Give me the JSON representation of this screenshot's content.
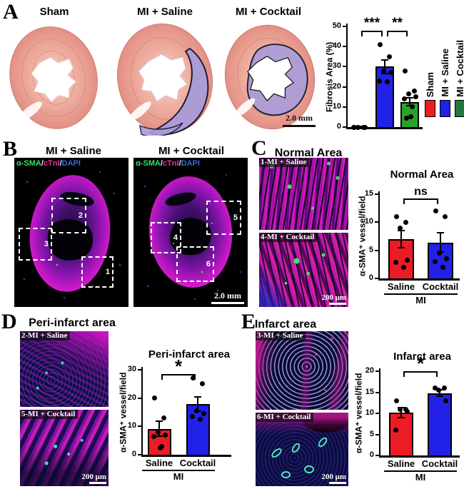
{
  "colors": {
    "red": "#ec1c24",
    "blue": "#2121e8",
    "green": "#29a329",
    "legend_green": "#1e7a3c"
  },
  "panel_a": {
    "letter": "A",
    "image_titles": [
      "Sham",
      "MI + Saline",
      "MI + Cocktail"
    ],
    "scale_bar": "2.0 mm",
    "legend": [
      {
        "label": "Sham",
        "color": "#ec1c24"
      },
      {
        "label": "MI + Saline",
        "color": "#2121e8"
      },
      {
        "label": "MI + Cocktail",
        "color": "#1e7a3c"
      }
    ]
  },
  "panel_b": {
    "letter": "B",
    "image_titles": [
      "MI + Saline",
      "MI + Cocktail"
    ],
    "stain_parts": [
      "α-SMA",
      "/",
      "cTnI",
      "/",
      "DAPI"
    ],
    "boxes_saline": [
      "2",
      "3",
      "1"
    ],
    "boxes_cocktail": [
      "5",
      "4",
      "6"
    ],
    "scale_bar": "2.0 mm"
  },
  "panel_c": {
    "letter": "C",
    "title": "Normal Area",
    "image_labels": [
      "1-MI + Saline",
      "4-MI + Cocktail"
    ],
    "scale_bar": "200 μm"
  },
  "panel_d": {
    "letter": "D",
    "title": "Peri-infarct area",
    "image_labels": [
      "2-MI + Saline",
      "5-MI + Cocktail"
    ],
    "scale_bar": "200 μm"
  },
  "panel_e": {
    "letter": "E",
    "title": "Infarct area",
    "image_labels": [
      "3-MI + Saline",
      "6-MI + Cocktail"
    ],
    "scale_bar": "200 μm"
  },
  "chart_data": [
    {
      "id": "fibrosis",
      "type": "bar",
      "title": "",
      "ylabel": "Fibrosis Area (%)",
      "ylim": [
        0,
        50
      ],
      "yticks": [
        0,
        10,
        20,
        30,
        40,
        50
      ],
      "categories": [
        "Sham",
        "MI + Saline",
        "MI + Cocktail"
      ],
      "series": [
        {
          "name": "Sham",
          "color": "#ec1c24",
          "value": 0.3,
          "sem": 0.2,
          "points": [
            0,
            0,
            0,
            0,
            0
          ]
        },
        {
          "name": "MI + Saline",
          "color": "#2121e8",
          "value": 30,
          "sem": 3.5,
          "points": [
            41,
            35,
            28,
            27,
            23,
            22.5
          ]
        },
        {
          "name": "MI + Cocktail",
          "color": "#29a329",
          "value": 12.5,
          "sem": 2,
          "points": [
            28,
            18,
            16.5,
            15,
            14,
            10,
            5,
            4.5
          ]
        }
      ],
      "significance": [
        {
          "a": 0,
          "b": 1,
          "label": "***"
        },
        {
          "a": 1,
          "b": 2,
          "label": "**"
        }
      ],
      "show_xlabels": false,
      "group_label": "",
      "legend_position": "right"
    },
    {
      "id": "normal",
      "type": "bar",
      "title": "Normal Area",
      "ylabel": "α-SMA⁺ vessel/field",
      "ylim": [
        0,
        15
      ],
      "yticks": [
        0,
        5,
        10,
        15
      ],
      "categories": [
        "Saline",
        "Cocktail"
      ],
      "series": [
        {
          "name": "Saline",
          "color": "#ec1c24",
          "value": 7,
          "sem": 1.5,
          "points": [
            11,
            10,
            9,
            3.2,
            2.8,
            2
          ]
        },
        {
          "name": "Cocktail",
          "color": "#2121e8",
          "value": 6.4,
          "sem": 1.7,
          "points": [
            12,
            11,
            4.5,
            3.5,
            3,
            2
          ]
        }
      ],
      "significance": [
        {
          "a": 0,
          "b": 1,
          "label": "ns"
        }
      ],
      "show_xlabels": true,
      "group_label": "MI"
    },
    {
      "id": "peri",
      "type": "bar",
      "title": "Peri-infarct area",
      "ylabel": "α-SMA⁺ vessel/field",
      "ylim": [
        0,
        30
      ],
      "yticks": [
        0,
        10,
        20,
        30
      ],
      "categories": [
        "Saline",
        "Cocktail"
      ],
      "series": [
        {
          "name": "Saline",
          "color": "#ec1c24",
          "value": 9.2,
          "sem": 2.6,
          "points": [
            20,
            13,
            8,
            7,
            6.5,
            3,
            2.5
          ]
        },
        {
          "name": "Cocktail",
          "color": "#2121e8",
          "value": 17.8,
          "sem": 2.5,
          "points": [
            27,
            25,
            15.5,
            14.5,
            13.5,
            12.5
          ]
        }
      ],
      "significance": [
        {
          "a": 0,
          "b": 1,
          "label": "*"
        }
      ],
      "show_xlabels": true,
      "group_label": "MI"
    },
    {
      "id": "infarct",
      "type": "bar",
      "title": "Infarct area",
      "ylabel": "α-SMA⁺ vessel/field",
      "ylim": [
        0,
        20
      ],
      "yticks": [
        0,
        5,
        10,
        15,
        20
      ],
      "categories": [
        "Saline",
        "Cocktail"
      ],
      "series": [
        {
          "name": "Saline",
          "color": "#ec1c24",
          "value": 10.1,
          "sem": 1.2,
          "points": [
            13,
            11,
            11,
            10.5,
            6
          ]
        },
        {
          "name": "Cocktail",
          "color": "#2121e8",
          "value": 14.8,
          "sem": 0.8,
          "points": [
            16,
            16,
            15.5,
            13
          ]
        }
      ],
      "significance": [
        {
          "a": 0,
          "b": 1,
          "label": "*"
        }
      ],
      "show_xlabels": true,
      "group_label": "MI"
    }
  ]
}
